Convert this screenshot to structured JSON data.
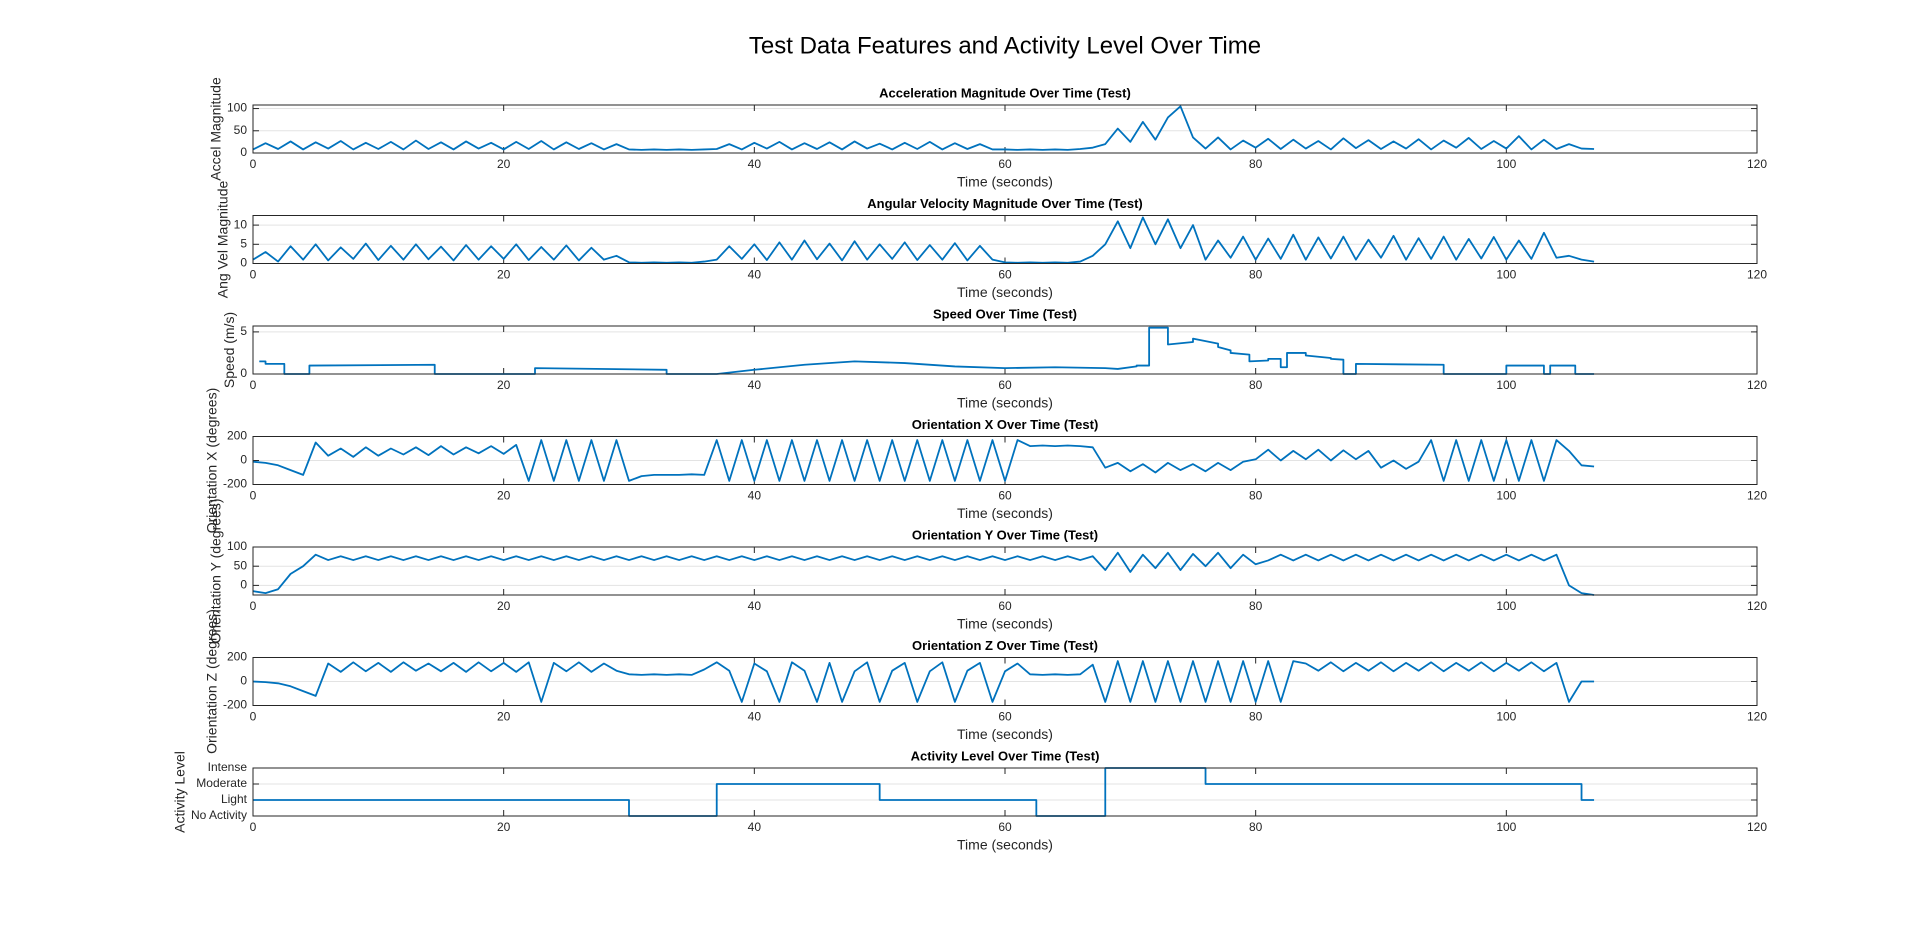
{
  "title": "Test Data Features and Activity Level Over Time",
  "chart_data": [
    {
      "type": "line",
      "title": "Acceleration Magnitude Over Time (Test)",
      "xlabel": "Time (seconds)",
      "ylabel": "Accel Magnitude",
      "color": "#0072bd",
      "grid": true,
      "xlim": [
        0,
        120
      ],
      "xticks": [
        0,
        20,
        40,
        60,
        80,
        100,
        120
      ],
      "ylim": [
        0,
        108
      ],
      "yticks": [
        0,
        50,
        100
      ],
      "x": [
        0,
        1,
        2,
        3,
        4,
        5,
        6,
        7,
        8,
        9,
        10,
        11,
        12,
        13,
        14,
        15,
        16,
        17,
        18,
        19,
        20,
        21,
        22,
        23,
        24,
        25,
        26,
        27,
        28,
        29,
        30,
        31,
        32,
        33,
        34,
        35,
        36,
        37,
        38,
        39,
        40,
        41,
        42,
        43,
        44,
        45,
        46,
        47,
        48,
        49,
        50,
        51,
        52,
        53,
        54,
        55,
        56,
        57,
        58,
        59,
        60,
        61,
        62,
        63,
        64,
        65,
        66,
        67,
        68,
        69,
        70,
        71,
        72,
        73,
        74,
        75,
        76,
        77,
        78,
        79,
        80,
        81,
        82,
        83,
        84,
        85,
        86,
        87,
        88,
        89,
        90,
        91,
        92,
        93,
        94,
        95,
        96,
        97,
        98,
        99,
        100,
        101,
        102,
        103,
        104,
        105,
        106,
        107
      ],
      "values": [
        8,
        22,
        9,
        26,
        8,
        24,
        10,
        27,
        8,
        23,
        9,
        25,
        8,
        28,
        9,
        24,
        8,
        26,
        10,
        23,
        8,
        25,
        9,
        27,
        8,
        24,
        9,
        22,
        8,
        20,
        8,
        7,
        8,
        7,
        8,
        7,
        8,
        9,
        20,
        8,
        23,
        10,
        25,
        8,
        22,
        9,
        24,
        8,
        26,
        10,
        21,
        8,
        23,
        9,
        25,
        8,
        22,
        9,
        20,
        8,
        8,
        7,
        8,
        7,
        8,
        7,
        9,
        12,
        20,
        55,
        25,
        70,
        30,
        80,
        105,
        35,
        10,
        35,
        8,
        28,
        12,
        32,
        9,
        30,
        10,
        27,
        8,
        33,
        11,
        29,
        9,
        26,
        10,
        31,
        8,
        28,
        12,
        34,
        9,
        27,
        10,
        38,
        8,
        30,
        9,
        20,
        10,
        9
      ]
    },
    {
      "type": "line",
      "title": "Angular Velocity Magnitude Over Time (Test)",
      "xlabel": "Time (seconds)",
      "ylabel": "Ang Vel Magnitude",
      "color": "#0072bd",
      "grid": true,
      "xlim": [
        0,
        120
      ],
      "xticks": [
        0,
        20,
        40,
        60,
        80,
        100,
        120
      ],
      "ylim": [
        0,
        12.5
      ],
      "yticks": [
        0,
        5,
        10
      ],
      "x": [
        0,
        1,
        2,
        3,
        4,
        5,
        6,
        7,
        8,
        9,
        10,
        11,
        12,
        13,
        14,
        15,
        16,
        17,
        18,
        19,
        20,
        21,
        22,
        23,
        24,
        25,
        26,
        27,
        28,
        29,
        30,
        31,
        32,
        33,
        34,
        35,
        36,
        37,
        38,
        39,
        40,
        41,
        42,
        43,
        44,
        45,
        46,
        47,
        48,
        49,
        50,
        51,
        52,
        53,
        54,
        55,
        56,
        57,
        58,
        59,
        60,
        61,
        62,
        63,
        64,
        65,
        66,
        67,
        68,
        69,
        70,
        71,
        72,
        73,
        74,
        75,
        76,
        77,
        78,
        79,
        80,
        81,
        82,
        83,
        84,
        85,
        86,
        87,
        88,
        89,
        90,
        91,
        92,
        93,
        94,
        95,
        96,
        97,
        98,
        99,
        100,
        101,
        102,
        103,
        104,
        105,
        106,
        107
      ],
      "values": [
        1,
        3,
        0.5,
        4.5,
        1,
        5,
        0.8,
        4.2,
        1.2,
        5.2,
        0.9,
        4.6,
        1,
        5,
        1.1,
        4.4,
        0.8,
        4.8,
        1,
        4.5,
        1.2,
        5,
        0.9,
        4.3,
        1,
        4.7,
        0.8,
        4.1,
        1,
        2,
        0.3,
        0.2,
        0.3,
        0.2,
        0.3,
        0.2,
        0.5,
        1,
        4.5,
        1.2,
        5,
        0.9,
        5.5,
        1,
        6,
        1.1,
        5.2,
        0.8,
        5.8,
        1,
        5,
        1.2,
        5.5,
        0.9,
        4.8,
        1,
        5.3,
        0.8,
        4.6,
        1,
        0.3,
        0.2,
        0.3,
        0.2,
        0.3,
        0.2,
        0.5,
        2,
        5,
        11,
        4,
        12,
        5,
        11.5,
        4,
        10,
        1,
        6,
        1.5,
        7,
        1,
        6.5,
        1.2,
        7.5,
        1,
        6.8,
        1.3,
        7,
        1,
        6.2,
        1.5,
        7.2,
        1,
        6.6,
        1.2,
        7,
        1,
        6.4,
        1.3,
        6.9,
        1,
        6,
        1.2,
        8,
        1.5,
        2,
        1,
        0.5
      ]
    },
    {
      "type": "line",
      "title": "Speed Over Time (Test)",
      "xlabel": "Time (seconds)",
      "ylabel": "Speed (m/s)",
      "color": "#0072bd",
      "grid": true,
      "xlim": [
        0,
        120
      ],
      "xticks": [
        0,
        20,
        40,
        60,
        80,
        100,
        120
      ],
      "ylim": [
        0,
        5.7
      ],
      "yticks": [
        0,
        5
      ],
      "x": [
        0.5,
        1,
        1,
        2.5,
        2.5,
        4.5,
        4.5,
        14.5,
        14.5,
        22.5,
        22.5,
        33,
        33,
        37,
        40,
        44,
        48,
        52,
        56,
        60,
        64,
        68,
        69,
        70.5,
        70.5,
        71.5,
        71.5,
        73,
        73,
        75,
        75,
        77,
        77,
        78,
        78,
        79.5,
        79.5,
        81,
        81,
        82,
        82,
        82.5,
        82.5,
        84,
        84,
        86,
        86,
        87,
        87,
        88,
        88,
        95,
        95,
        100,
        100,
        103,
        103,
        103.5,
        103.5,
        105.5,
        105.5,
        107
      ],
      "values": [
        1.5,
        1.5,
        1.2,
        1.2,
        0,
        0,
        1.0,
        1.1,
        0,
        0,
        0.7,
        0.5,
        0,
        0,
        0.5,
        1.1,
        1.5,
        1.3,
        0.9,
        0.7,
        0.8,
        0.7,
        0.6,
        0.9,
        1.0,
        1.0,
        5.5,
        5.5,
        3.5,
        3.8,
        4.2,
        3.6,
        3.2,
        2.8,
        2.5,
        2.3,
        1.5,
        1.6,
        1.8,
        1.8,
        0.8,
        0.8,
        2.5,
        2.5,
        2.2,
        1.9,
        1.8,
        1.7,
        0,
        0,
        1.2,
        1.1,
        0,
        0,
        1.0,
        1.0,
        0,
        0,
        1.0,
        1.0,
        0,
        0
      ]
    },
    {
      "type": "line",
      "title": "Orientation X Over Time (Test)",
      "xlabel": "Time (seconds)",
      "ylabel": "Orientation X (degrees)",
      "color": "#0072bd",
      "grid": true,
      "xlim": [
        0,
        120
      ],
      "xticks": [
        0,
        20,
        40,
        60,
        80,
        100,
        120
      ],
      "ylim": [
        -200,
        200
      ],
      "yticks": [
        -200,
        0,
        200
      ],
      "x": [
        0,
        1,
        2,
        3,
        4,
        5,
        6,
        7,
        8,
        9,
        10,
        11,
        12,
        13,
        14,
        15,
        16,
        17,
        18,
        19,
        20,
        21,
        22,
        23,
        24,
        25,
        26,
        27,
        28,
        29,
        30,
        31,
        32,
        33,
        34,
        35,
        36,
        37,
        38,
        39,
        40,
        41,
        42,
        43,
        44,
        45,
        46,
        47,
        48,
        49,
        50,
        51,
        52,
        53,
        54,
        55,
        56,
        57,
        58,
        59,
        60,
        61,
        62,
        63,
        64,
        65,
        66,
        67,
        68,
        69,
        70,
        71,
        72,
        73,
        74,
        75,
        76,
        77,
        78,
        79,
        80,
        81,
        82,
        83,
        84,
        85,
        86,
        87,
        88,
        89,
        90,
        91,
        92,
        93,
        94,
        95,
        96,
        97,
        98,
        99,
        100,
        101,
        102,
        103,
        104,
        105,
        106,
        107
      ],
      "values": [
        -10,
        -20,
        -40,
        -80,
        -120,
        150,
        40,
        100,
        30,
        110,
        40,
        100,
        50,
        110,
        45,
        120,
        50,
        110,
        60,
        120,
        55,
        130,
        -170,
        170,
        -170,
        170,
        -170,
        170,
        -170,
        170,
        -170,
        -130,
        -120,
        -120,
        -120,
        -115,
        -120,
        170,
        -170,
        170,
        -170,
        170,
        -170,
        170,
        -170,
        170,
        -170,
        170,
        -170,
        170,
        -170,
        170,
        -170,
        170,
        -170,
        170,
        -170,
        170,
        -170,
        170,
        -170,
        170,
        120,
        125,
        120,
        125,
        120,
        110,
        -60,
        -20,
        -90,
        -30,
        -100,
        -20,
        -80,
        -30,
        -90,
        -20,
        -80,
        -10,
        10,
        90,
        0,
        80,
        10,
        90,
        0,
        85,
        10,
        80,
        -60,
        0,
        -70,
        -10,
        170,
        -170,
        170,
        -170,
        170,
        -170,
        170,
        -170,
        170,
        -170,
        170,
        80,
        -40,
        -50
      ]
    },
    {
      "type": "line",
      "title": "Orientation Y Over Time (Test)",
      "xlabel": "Time (seconds)",
      "ylabel": "Orientation Y (degrees)",
      "color": "#0072bd",
      "grid": true,
      "xlim": [
        0,
        120
      ],
      "xticks": [
        0,
        20,
        40,
        60,
        80,
        100,
        120
      ],
      "ylim": [
        -25,
        100
      ],
      "yticks": [
        0,
        50,
        100
      ],
      "x": [
        0,
        1,
        2,
        3,
        4,
        5,
        6,
        7,
        8,
        9,
        10,
        11,
        12,
        13,
        14,
        15,
        16,
        17,
        18,
        19,
        20,
        21,
        22,
        23,
        24,
        25,
        26,
        27,
        28,
        29,
        30,
        31,
        32,
        33,
        34,
        35,
        36,
        37,
        38,
        39,
        40,
        41,
        42,
        43,
        44,
        45,
        46,
        47,
        48,
        49,
        50,
        51,
        52,
        53,
        54,
        55,
        56,
        57,
        58,
        59,
        60,
        61,
        62,
        63,
        64,
        65,
        66,
        67,
        68,
        69,
        70,
        71,
        72,
        73,
        74,
        75,
        76,
        77,
        78,
        79,
        80,
        81,
        82,
        83,
        84,
        85,
        86,
        87,
        88,
        89,
        90,
        91,
        92,
        93,
        94,
        95,
        96,
        97,
        98,
        99,
        100,
        101,
        102,
        103,
        104,
        105,
        106,
        107
      ],
      "values": [
        -15,
        -20,
        -10,
        30,
        50,
        80,
        66,
        76,
        66,
        76,
        66,
        76,
        66,
        76,
        66,
        76,
        66,
        76,
        66,
        76,
        66,
        76,
        66,
        76,
        66,
        76,
        66,
        76,
        66,
        76,
        66,
        76,
        66,
        76,
        66,
        76,
        66,
        76,
        66,
        76,
        66,
        76,
        66,
        76,
        66,
        76,
        66,
        76,
        66,
        76,
        66,
        76,
        66,
        76,
        66,
        76,
        66,
        76,
        66,
        76,
        66,
        76,
        66,
        76,
        66,
        76,
        66,
        76,
        40,
        85,
        35,
        80,
        45,
        85,
        40,
        82,
        50,
        85,
        45,
        80,
        55,
        65,
        80,
        65,
        80,
        65,
        80,
        65,
        80,
        65,
        80,
        65,
        80,
        65,
        80,
        65,
        80,
        65,
        80,
        65,
        80,
        65,
        80,
        65,
        80,
        0,
        -20,
        -25
      ]
    },
    {
      "type": "line",
      "title": "Orientation Z Over Time (Test)",
      "xlabel": "Time (seconds)",
      "ylabel": "Orientation Z (degrees)",
      "color": "#0072bd",
      "grid": true,
      "xlim": [
        0,
        120
      ],
      "xticks": [
        0,
        20,
        40,
        60,
        80,
        100,
        120
      ],
      "ylim": [
        -200,
        200
      ],
      "yticks": [
        -200,
        0,
        200
      ],
      "x": [
        0,
        1,
        2,
        3,
        4,
        5,
        6,
        7,
        8,
        9,
        10,
        11,
        12,
        13,
        14,
        15,
        16,
        17,
        18,
        19,
        20,
        21,
        22,
        23,
        24,
        25,
        26,
        27,
        28,
        29,
        30,
        31,
        32,
        33,
        34,
        35,
        36,
        37,
        38,
        39,
        40,
        41,
        42,
        43,
        44,
        45,
        46,
        47,
        48,
        49,
        50,
        51,
        52,
        53,
        54,
        55,
        56,
        57,
        58,
        59,
        60,
        61,
        62,
        63,
        64,
        65,
        66,
        67,
        68,
        69,
        70,
        71,
        72,
        73,
        74,
        75,
        76,
        77,
        78,
        79,
        80,
        81,
        82,
        83,
        84,
        85,
        86,
        87,
        88,
        89,
        90,
        91,
        92,
        93,
        94,
        95,
        96,
        97,
        98,
        99,
        100,
        101,
        102,
        103,
        104,
        105,
        106,
        107
      ],
      "values": [
        0,
        -5,
        -15,
        -40,
        -80,
        -120,
        150,
        80,
        160,
        85,
        155,
        80,
        160,
        90,
        150,
        85,
        155,
        80,
        160,
        85,
        155,
        80,
        160,
        -170,
        155,
        85,
        160,
        80,
        150,
        90,
        60,
        55,
        60,
        55,
        60,
        55,
        100,
        160,
        90,
        -170,
        150,
        85,
        -170,
        160,
        90,
        -170,
        155,
        -170,
        85,
        160,
        -170,
        90,
        155,
        -170,
        85,
        160,
        -170,
        90,
        155,
        -170,
        85,
        150,
        60,
        55,
        60,
        55,
        60,
        140,
        -170,
        170,
        -170,
        170,
        -170,
        170,
        -170,
        170,
        -170,
        170,
        -170,
        170,
        -170,
        170,
        -170,
        170,
        150,
        90,
        160,
        85,
        155,
        90,
        160,
        85,
        155,
        90,
        160,
        85,
        155,
        90,
        160,
        85,
        155,
        90,
        160,
        85,
        155,
        -170,
        0,
        0
      ]
    },
    {
      "type": "line",
      "title": "Activity Level Over Time (Test)",
      "xlabel": "Time (seconds)",
      "ylabel": "Activity Level",
      "color": "#0072bd",
      "grid": true,
      "xlim": [
        0,
        120
      ],
      "xticks": [
        0,
        20,
        40,
        60,
        80,
        100,
        120
      ],
      "ylim": [
        0,
        3
      ],
      "yticks": [
        {
          "value": 0,
          "label": "No Activity"
        },
        {
          "value": 1,
          "label": "Light"
        },
        {
          "value": 2,
          "label": "Moderate"
        },
        {
          "value": 3,
          "label": "Intense"
        }
      ],
      "x": [
        0,
        30,
        30,
        37,
        37,
        50,
        50,
        62.5,
        62.5,
        68,
        68,
        76,
        76,
        106,
        106,
        107
      ],
      "values": [
        1,
        1,
        0,
        0,
        2,
        2,
        1,
        1,
        0,
        0,
        3,
        3,
        2,
        2,
        1,
        1
      ]
    }
  ]
}
